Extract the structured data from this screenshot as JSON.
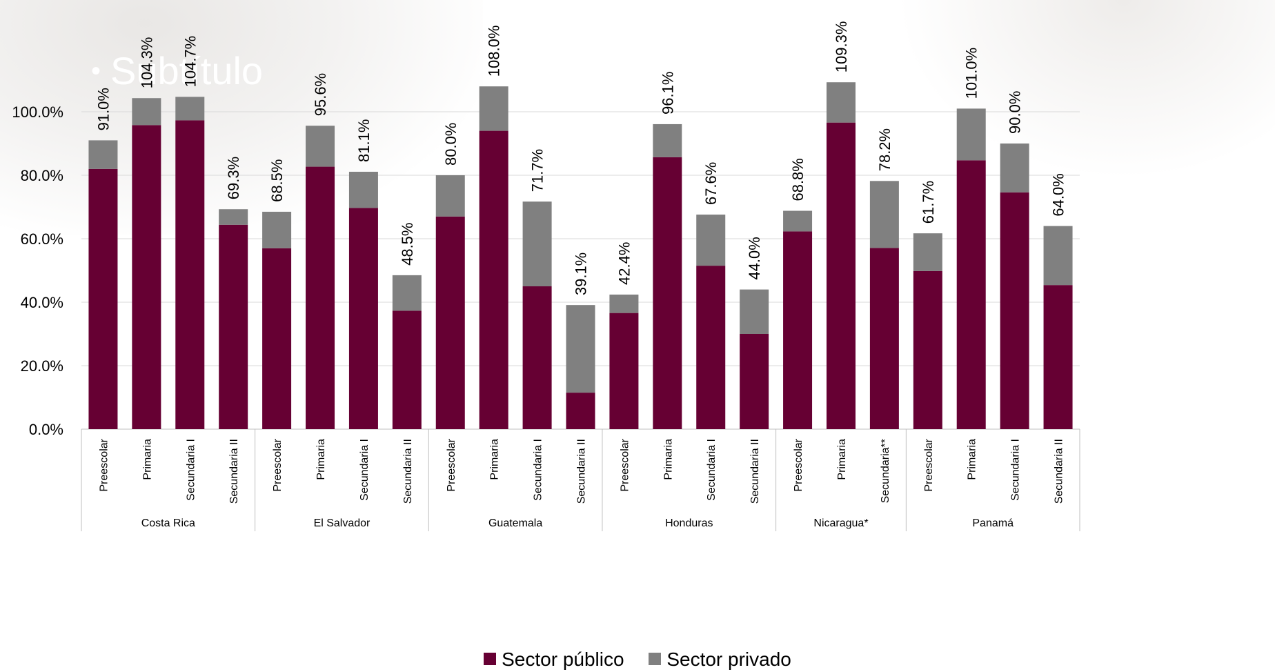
{
  "background_text": "Subtítulo",
  "legend": {
    "public_label": "Sector público",
    "private_label": "Sector privado"
  },
  "colors": {
    "public": "#660033",
    "private": "#808080",
    "grid": "#d9d9d9",
    "axis": "#bfbfbf"
  },
  "chart_data": {
    "type": "bar",
    "stacked": true,
    "title": "",
    "xlabel": "",
    "ylabel": "",
    "ylim": [
      0,
      100
    ],
    "yticks": [
      "0.0%",
      "20.0%",
      "40.0%",
      "60.0%",
      "80.0%",
      "100.0%"
    ],
    "grid": true,
    "legend_position": "bottom",
    "groups": [
      {
        "country": "Costa Rica",
        "bars": [
          {
            "level": "Preescolar",
            "public": 82.0,
            "total": 91.0,
            "label": "91.0%"
          },
          {
            "level": "Primaria",
            "public": 95.8,
            "total": 104.3,
            "label": "104.3%"
          },
          {
            "level": "Secundaria I",
            "public": 97.3,
            "total": 104.7,
            "label": "104.7%"
          },
          {
            "level": "Secundaria II",
            "public": 64.4,
            "total": 69.3,
            "label": "69.3%"
          }
        ]
      },
      {
        "country": "El Salvador",
        "bars": [
          {
            "level": "Preescolar",
            "public": 57.0,
            "total": 68.5,
            "label": "68.5%"
          },
          {
            "level": "Primaria",
            "public": 82.7,
            "total": 95.6,
            "label": "95.6%"
          },
          {
            "level": "Secundaria I",
            "public": 69.7,
            "total": 81.1,
            "label": "81.1%"
          },
          {
            "level": "Secundaria II",
            "public": 37.3,
            "total": 48.5,
            "label": "48.5%"
          }
        ]
      },
      {
        "country": "Guatemala",
        "bars": [
          {
            "level": "Preescolar",
            "public": 67.0,
            "total": 80.0,
            "label": "80.0%"
          },
          {
            "level": "Primaria",
            "public": 94.0,
            "total": 108.0,
            "label": "108.0%"
          },
          {
            "level": "Secundaria I",
            "public": 45.0,
            "total": 71.7,
            "label": "71.7%"
          },
          {
            "level": "Secundaria II",
            "public": 11.5,
            "total": 39.1,
            "label": "39.1%"
          }
        ]
      },
      {
        "country": "Honduras",
        "bars": [
          {
            "level": "Preescolar",
            "public": 36.6,
            "total": 42.4,
            "label": "42.4%"
          },
          {
            "level": "Primaria",
            "public": 85.7,
            "total": 96.1,
            "label": "96.1%"
          },
          {
            "level": "Secundaria I",
            "public": 51.5,
            "total": 67.6,
            "label": "67.6%"
          },
          {
            "level": "Secundaria II",
            "public": 30.0,
            "total": 44.0,
            "label": "44.0%"
          }
        ]
      },
      {
        "country": "Nicaragua*",
        "bars": [
          {
            "level": "Preescolar",
            "public": 62.3,
            "total": 68.8,
            "label": "68.8%"
          },
          {
            "level": "Primaria",
            "public": 96.6,
            "total": 109.3,
            "label": "109.3%"
          },
          {
            "level": "Secundaria**",
            "public": 57.1,
            "total": 78.2,
            "label": "78.2%"
          }
        ]
      },
      {
        "country": "Panamá",
        "bars": [
          {
            "level": "Preescolar",
            "public": 49.8,
            "total": 61.7,
            "label": "61.7%"
          },
          {
            "level": "Primaria",
            "public": 84.7,
            "total": 101.0,
            "label": "101.0%"
          },
          {
            "level": "Secundaria I",
            "public": 74.6,
            "total": 90.0,
            "label": "90.0%"
          },
          {
            "level": "Secundaria II",
            "public": 45.4,
            "total": 64.0,
            "label": "64.0%"
          }
        ]
      }
    ]
  }
}
